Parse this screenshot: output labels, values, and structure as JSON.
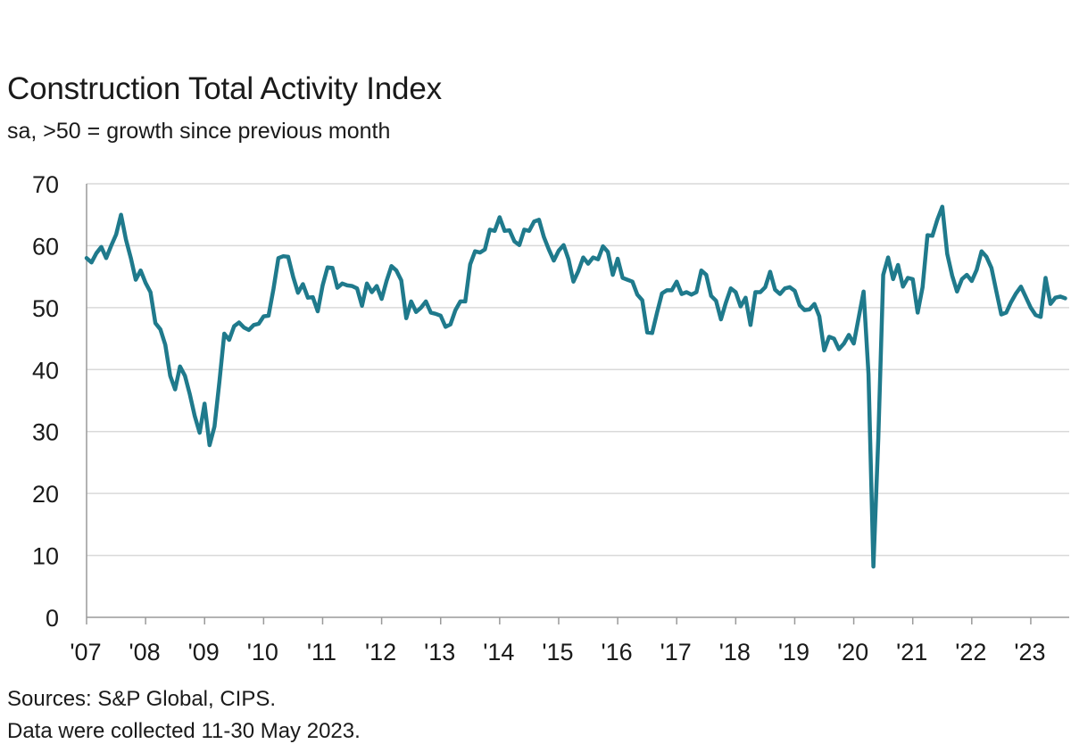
{
  "chart_data": {
    "type": "line",
    "title": "Construction Total Activity Index",
    "subtitle": "sa, >50 = growth since previous month",
    "xlabel": "",
    "ylabel": "",
    "ylim": [
      0,
      70
    ],
    "yticks": [
      "0",
      "10",
      "20",
      "30",
      "40",
      "50",
      "60",
      "70"
    ],
    "xticks": [
      "'07",
      "'08",
      "'09",
      "'10",
      "'11",
      "'12",
      "'13",
      "'14",
      "'15",
      "'16",
      "'17",
      "'18",
      "'19",
      "'20",
      "'21",
      "'22",
      "'23"
    ],
    "grid": true,
    "legend": "none",
    "line_color": "#1f7a8c",
    "series": [
      {
        "start": "2007-01",
        "end": "2023-05",
        "frequency": "monthly",
        "values": [
          58,
          57.3,
          58.8,
          59.8,
          58,
          60,
          61.8,
          65,
          61,
          58,
          54.5,
          56,
          54,
          52.5,
          47.5,
          46.5,
          44,
          39,
          36.8,
          40.5,
          39,
          36,
          32.5,
          29.8,
          34.5,
          27.8,
          30.8,
          38,
          45.8,
          44.8,
          47,
          47.6,
          46.8,
          46.4,
          47.2,
          47.4,
          48.6,
          48.7,
          53,
          58,
          58.3,
          58.2,
          55,
          52.4,
          53.8,
          51.6,
          51.7,
          49.4,
          53.6,
          56.5,
          56.4,
          53.2,
          53.9,
          53.6,
          53.5,
          53.1,
          50.3,
          53.9,
          52.5,
          53.5,
          51.4,
          54.3,
          56.7,
          56,
          54.4,
          48.3,
          51,
          49.3,
          50,
          51,
          49.2,
          49,
          48.7,
          46.9,
          47.3,
          49.6,
          51,
          51,
          57,
          59.1,
          58.9,
          59.4,
          62.6,
          62.4,
          64.6,
          62.4,
          62.5,
          60.7,
          60.1,
          62.6,
          62.4,
          63.9,
          64.2,
          61.4,
          59.4,
          57.6,
          59.2,
          60.1,
          57.8,
          54.2,
          55.9,
          58.1,
          57.1,
          58.1,
          57.8,
          59.9,
          59,
          55.3,
          57.9,
          54.8,
          54.5,
          54.2,
          52.1,
          51.2,
          46,
          45.9,
          49.2,
          52.3,
          52.8,
          52.8,
          54.2,
          52.2,
          52.5,
          52.1,
          52.5,
          56,
          55.3,
          51.9,
          51.1,
          48.1,
          50.8,
          53.1,
          52.5,
          50.2,
          51.6,
          47.2,
          52.5,
          52.5,
          53.3,
          55.8,
          52.9,
          52.2,
          53.1,
          53.3,
          52.7,
          50.4,
          49.6,
          49.7,
          50.6,
          48.6,
          43.1,
          45.3,
          45,
          43.3,
          44.2,
          45.6,
          44.2,
          48.4,
          52.6,
          39.3,
          8.2,
          28.9,
          55.3,
          58.1,
          54.6,
          56.9,
          53.4,
          54.8,
          54.6,
          49.2,
          53.3,
          61.7,
          61.6,
          64.2,
          66.3,
          58.7,
          55.2,
          52.6,
          54.6,
          55.3,
          54.3,
          56.1,
          59.1,
          58.2,
          56.4,
          52.6,
          48.9,
          49.2,
          50.9,
          52.3,
          53.4,
          51.7,
          50,
          48.8,
          48.5,
          54.8,
          50.6,
          51.6,
          51.8,
          51.5
        ]
      }
    ]
  },
  "footer": {
    "source": "Sources: S&P Global, CIPS.",
    "note": "Data were collected 11-30 May 2023."
  }
}
